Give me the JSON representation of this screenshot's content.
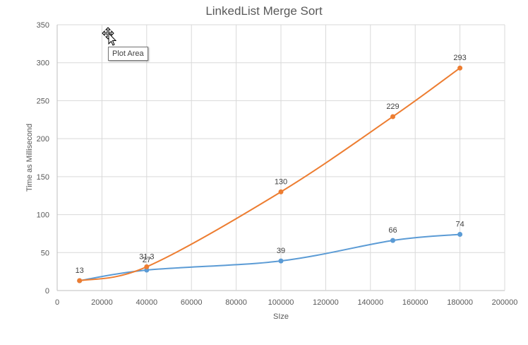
{
  "tooltip": {
    "text": "Plot Area"
  },
  "cursor": {
    "icon": "move-cursor-icon"
  },
  "chart_data": {
    "type": "line",
    "title": "LinkedList Merge Sort",
    "xlabel": "SIze",
    "ylabel": "Time as Millisecond",
    "xlim": [
      0,
      200000
    ],
    "ylim": [
      0,
      350
    ],
    "x_ticks": [
      0,
      20000,
      40000,
      60000,
      80000,
      100000,
      120000,
      140000,
      160000,
      180000,
      200000
    ],
    "y_ticks": [
      0,
      50,
      100,
      150,
      200,
      250,
      300,
      350
    ],
    "grid": true,
    "smooth": true,
    "series": [
      {
        "color": "#5b9bd5",
        "points": [
          [
            10000,
            13
          ],
          [
            40000,
            27
          ],
          [
            100000,
            39
          ],
          [
            150000,
            66
          ],
          [
            180000,
            74
          ]
        ],
        "labels": [
          "",
          "27",
          "39",
          "66",
          "74"
        ]
      },
      {
        "color": "#ed7d31",
        "points": [
          [
            10000,
            13
          ],
          [
            40000,
            31.3
          ],
          [
            100000,
            130
          ],
          [
            150000,
            229
          ],
          [
            180000,
            293
          ]
        ],
        "labels": [
          "13",
          "31.3",
          "130",
          "229",
          "293"
        ]
      }
    ]
  }
}
